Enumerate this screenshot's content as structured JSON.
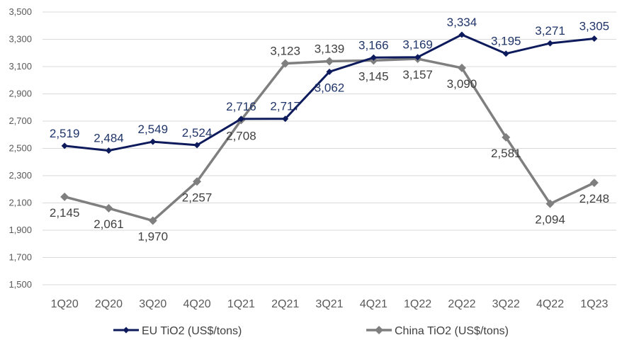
{
  "chart_data": {
    "type": "line",
    "title": "",
    "xlabel": "",
    "ylabel": "",
    "ylim": [
      1500,
      3500
    ],
    "yticks": [
      1500,
      1700,
      1900,
      2100,
      2300,
      2500,
      2700,
      2900,
      3100,
      3300,
      3500
    ],
    "ytick_labels": [
      "1,500",
      "1,700",
      "1,900",
      "2,100",
      "2,300",
      "2,500",
      "2,700",
      "2,900",
      "3,100",
      "3,300",
      "3,500"
    ],
    "grid": "horizontal",
    "legend": "bottom",
    "categories": [
      "1Q20",
      "2Q20",
      "3Q20",
      "4Q20",
      "1Q21",
      "2Q21",
      "3Q21",
      "4Q21",
      "1Q22",
      "2Q22",
      "3Q22",
      "4Q22",
      "1Q23"
    ],
    "series": [
      {
        "name": "EU TiO2 (US$/tons)",
        "color": "#0d1a5c",
        "label_color": "#1f3468",
        "marker": "diamond",
        "values": [
          2519,
          2484,
          2549,
          2524,
          2716,
          2717,
          3062,
          3166,
          3169,
          3334,
          3195,
          3271,
          3305
        ],
        "labels": [
          "2,519",
          "2,484",
          "2,549",
          "2,524",
          "2,716",
          "2,717",
          "3,062",
          "3,166",
          "3,169",
          "3,334",
          "3,195",
          "3,271",
          "3,305"
        ],
        "label_pos": [
          "above",
          "above",
          "above",
          "above",
          "above",
          "above",
          "below",
          "above",
          "above",
          "above",
          "above",
          "above",
          "above"
        ]
      },
      {
        "name": "China TiO2 (US$/tons)",
        "color": "#7f7f7f",
        "label_color": "#404040",
        "marker": "diamond",
        "values": [
          2145,
          2061,
          1970,
          2257,
          2708,
          3123,
          3139,
          3145,
          3157,
          3090,
          2581,
          2094,
          2248
        ],
        "labels": [
          "2,145",
          "2,061",
          "1,970",
          "2,257",
          "2,708",
          "3,123",
          "3,139",
          "3,145",
          "3,157",
          "3,090",
          "2,581",
          "2,094",
          "2,248"
        ],
        "label_pos": [
          "below",
          "below",
          "below",
          "below",
          "below",
          "above",
          "above",
          "below",
          "below",
          "below",
          "below",
          "below",
          "below"
        ]
      }
    ]
  }
}
